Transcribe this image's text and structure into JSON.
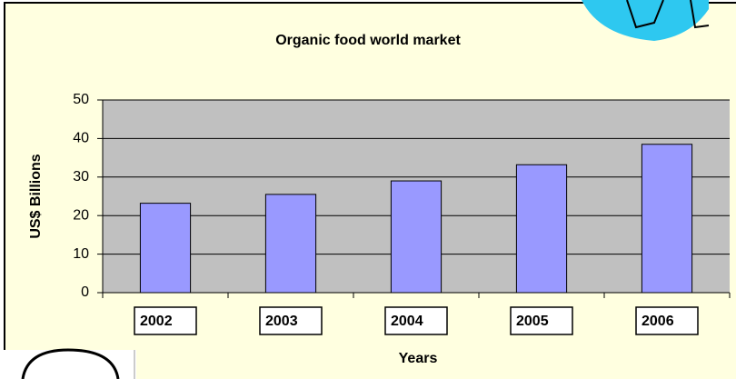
{
  "chart_data": {
    "type": "bar",
    "title": "Organic food world market",
    "x_label": "Years",
    "y_label": "US$ Billions",
    "categories": [
      "2002",
      "2003",
      "2004",
      "2005",
      "2006"
    ],
    "values": [
      23.2,
      25.5,
      29,
      33.2,
      38.5
    ],
    "color": "#9999ff",
    "ylim": [
      0,
      50
    ],
    "yticks": [
      0,
      10,
      20,
      30,
      40,
      50
    ],
    "grid": true
  }
}
